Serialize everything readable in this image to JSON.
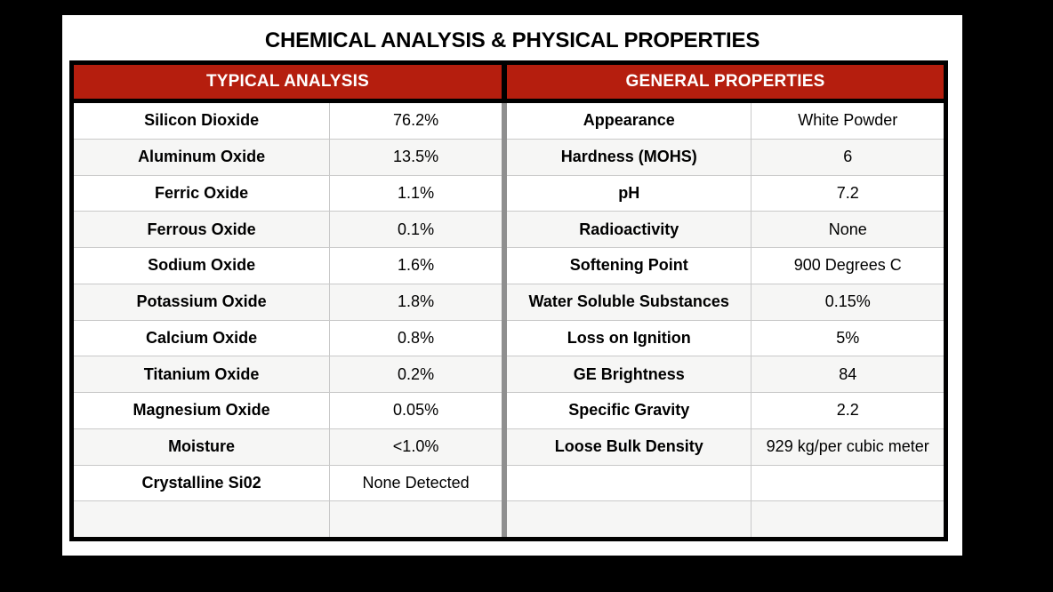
{
  "page": {
    "title": "CHEMICAL ANALYSIS & PHYSICAL PROPERTIES"
  },
  "colors": {
    "header_red": "#b51e0e",
    "header_text": "#ffffff",
    "outer_border": "#000000",
    "center_divider_gray": "#8f8f8f",
    "row_alt_background": "#f6f6f5",
    "row_line_gray": "#c9c9c9",
    "page_background": "#000000",
    "card_background": "#ffffff"
  },
  "analysis_table": {
    "header": "TYPICAL ANALYSIS",
    "rows": [
      {
        "label": "Silicon Dioxide",
        "value": "76.2%"
      },
      {
        "label": "Aluminum Oxide",
        "value": "13.5%"
      },
      {
        "label": "Ferric Oxide",
        "value": "1.1%"
      },
      {
        "label": "Ferrous Oxide",
        "value": "0.1%"
      },
      {
        "label": "Sodium Oxide",
        "value": "1.6%"
      },
      {
        "label": "Potassium Oxide",
        "value": "1.8%"
      },
      {
        "label": "Calcium Oxide",
        "value": "0.8%"
      },
      {
        "label": "Titanium Oxide",
        "value": "0.2%"
      },
      {
        "label": "Magnesium Oxide",
        "value": "0.05%"
      },
      {
        "label": "Moisture",
        "value": "<1.0%"
      },
      {
        "label": "Crystalline Si02",
        "value": "None Detected"
      },
      {
        "label": "",
        "value": ""
      }
    ]
  },
  "properties_table": {
    "header": "GENERAL PROPERTIES",
    "rows": [
      {
        "label": "Appearance",
        "value": "White Powder"
      },
      {
        "label": "Hardness (MOHS)",
        "value": "6"
      },
      {
        "label": "pH",
        "value": "7.2"
      },
      {
        "label": "Radioactivity",
        "value": "None"
      },
      {
        "label": "Softening Point",
        "value": "900 Degrees C"
      },
      {
        "label": "Water Soluble Substances",
        "value": "0.15%"
      },
      {
        "label": "Loss on Ignition",
        "value": "5%"
      },
      {
        "label": "GE Brightness",
        "value": "84"
      },
      {
        "label": "Specific Gravity",
        "value": "2.2"
      },
      {
        "label": "Loose Bulk Density",
        "value": "929 kg/per cubic meter"
      },
      {
        "label": "",
        "value": ""
      },
      {
        "label": "",
        "value": ""
      }
    ]
  }
}
